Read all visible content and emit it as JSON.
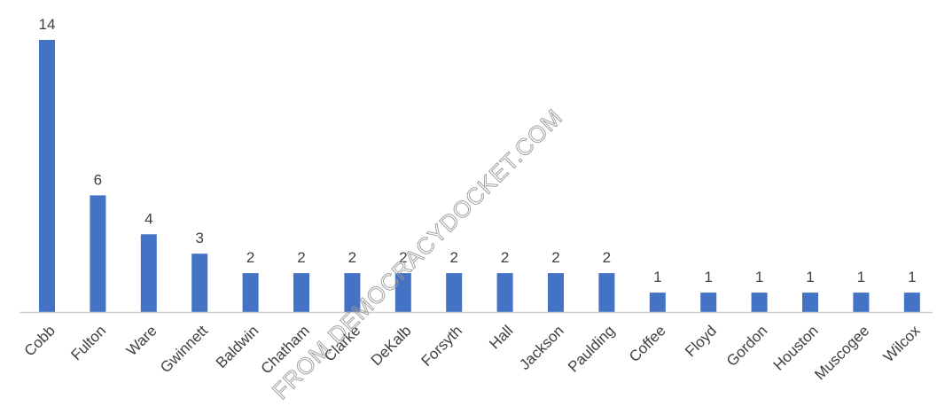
{
  "watermark": "FROM DEMOCRACYDOCKET.COM",
  "chart_data": {
    "type": "bar",
    "title": "",
    "xlabel": "",
    "ylabel": "",
    "categories": [
      "Cobb",
      "Fulton",
      "Ware",
      "Gwinnett",
      "Baldwin",
      "Chatham",
      "Clarke",
      "DeKalb",
      "Forsyth",
      "Hall",
      "Jackson",
      "Paulding",
      "Coffee",
      "Floyd",
      "Gordon",
      "Houston",
      "Muscogee",
      "Wilcox"
    ],
    "values": [
      14,
      6,
      4,
      3,
      2,
      2,
      2,
      2,
      2,
      2,
      2,
      2,
      1,
      1,
      1,
      1,
      1,
      1
    ],
    "ylim": [
      0,
      14
    ],
    "grid": false,
    "data_labels": true,
    "bar_color": "#4472c4"
  }
}
